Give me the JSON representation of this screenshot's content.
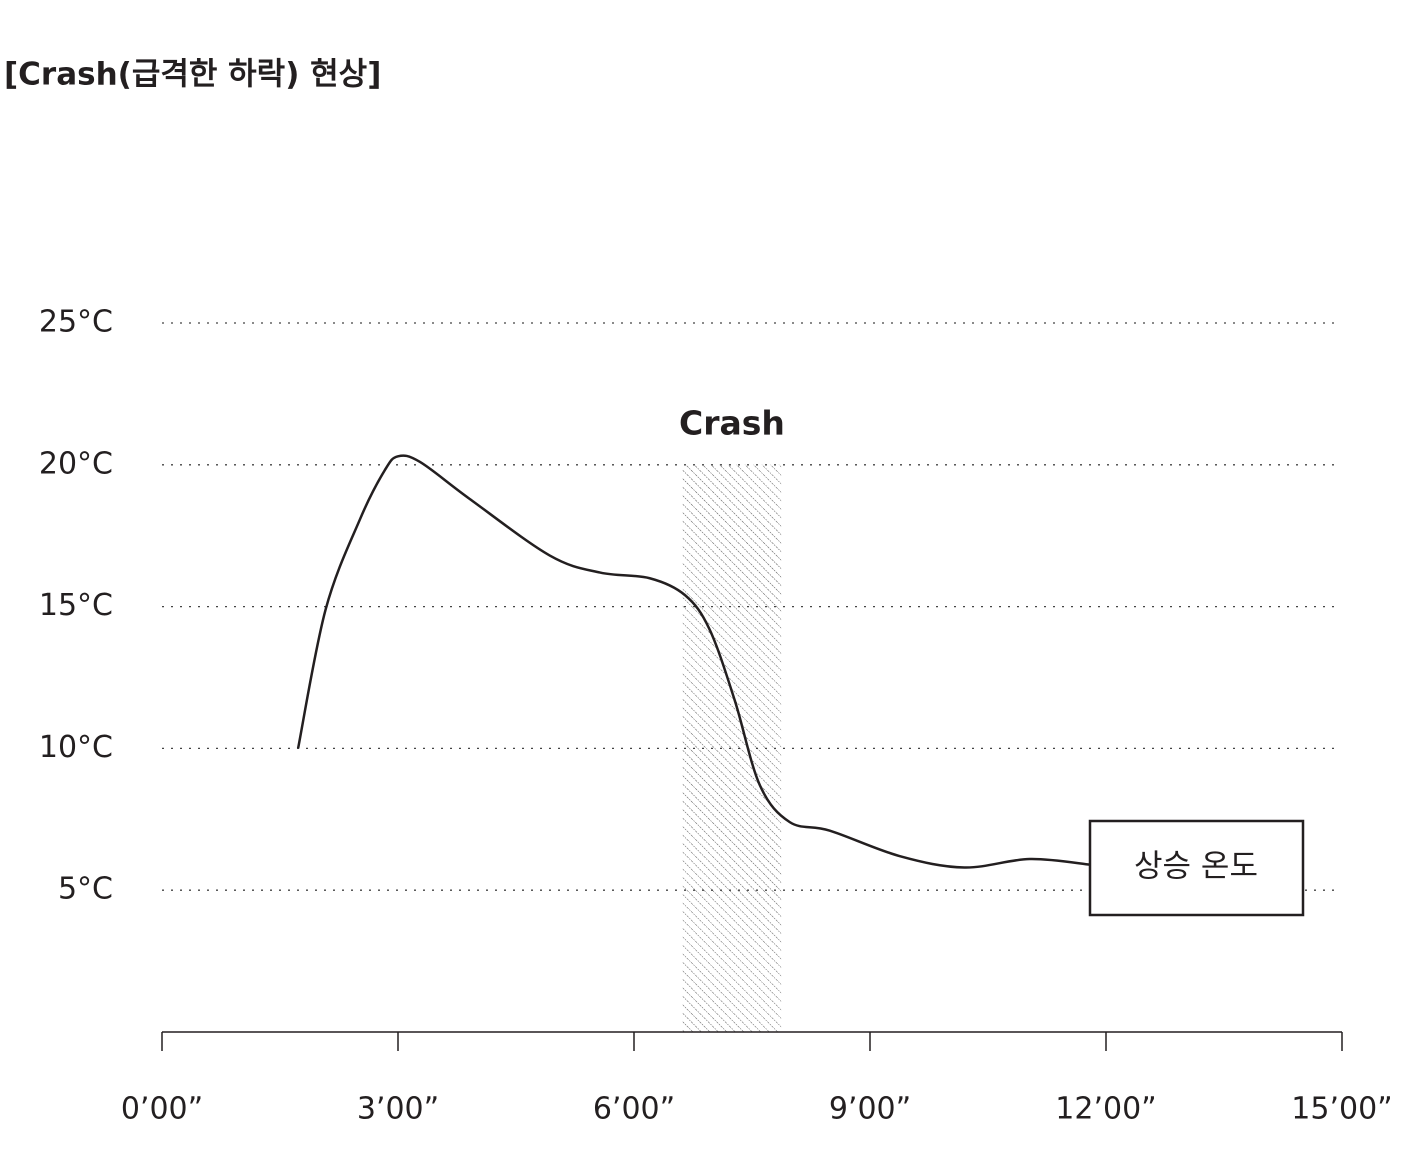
{
  "chart_data": {
    "type": "line",
    "title": "[Crash(급격한 하락) 현상]",
    "x": [
      1.73,
      2.08,
      2.52,
      2.83,
      3.0,
      3.28,
      3.91,
      4.93,
      5.57,
      6.2,
      6.65,
      6.96,
      7.28,
      7.6,
      7.98,
      8.49,
      9.38,
      10.2,
      11.03,
      11.8
    ],
    "series": [
      {
        "color": "#231f20",
        "values": [
          10.0,
          14.9,
          18.1,
          19.8,
          20.3,
          20.1,
          18.8,
          16.8,
          16.2,
          16.0,
          15.4,
          14.2,
          11.7,
          8.7,
          7.4,
          7.1,
          6.2,
          5.8,
          6.1,
          5.9
        ]
      }
    ],
    "xlim": [
      0,
      15
    ],
    "xticks": [
      {
        "value": 0,
        "label": "0’00”"
      },
      {
        "value": 3,
        "label": "3’00”"
      },
      {
        "value": 6,
        "label": "6’00”"
      },
      {
        "value": 9,
        "label": "9’00”"
      },
      {
        "value": 12,
        "label": "12’00”"
      },
      {
        "value": 15,
        "label": "15’00”"
      }
    ],
    "ylim": [
      0,
      25
    ],
    "yticks": [
      {
        "value": 5,
        "label": "5°C"
      },
      {
        "value": 10,
        "label": "10°C"
      },
      {
        "value": 15,
        "label": "15°C"
      },
      {
        "value": 20,
        "label": "20°C"
      },
      {
        "value": 25,
        "label": "25°C"
      }
    ],
    "grid": true,
    "highlight": {
      "label": "Crash",
      "x": [
        6.62,
        7.87
      ],
      "y": [
        0,
        20
      ]
    },
    "annotation": "상승 온도"
  }
}
